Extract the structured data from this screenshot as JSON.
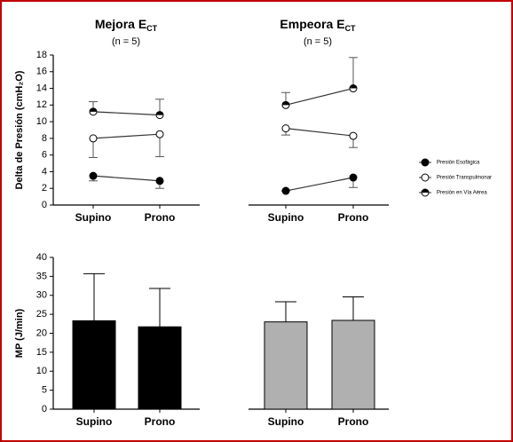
{
  "chart_data": [
    {
      "type": "line",
      "title": "Mejora E",
      "title_subscript": "CT",
      "subtitle": "(n = 5)",
      "ylabel": "Delta de Presión (cmH₂O)",
      "categories": [
        "Supino",
        "Prono"
      ],
      "ylim": [
        0,
        18
      ],
      "yticks": [
        0,
        2,
        4,
        6,
        8,
        10,
        12,
        14,
        16,
        18
      ],
      "series": [
        {
          "marker": "filled",
          "color": "#000000",
          "values": [
            3.5,
            2.9
          ],
          "errors": [
            0.6,
            0.9
          ],
          "error_side": "down"
        },
        {
          "marker": "open",
          "color": "#000000",
          "values": [
            8.0,
            8.5
          ],
          "errors": [
            2.3,
            2.7
          ],
          "error_side": "down"
        },
        {
          "marker": "half",
          "color": "#000000",
          "values": [
            11.2,
            10.8
          ],
          "errors": [
            1.2,
            1.9
          ],
          "error_side": "up"
        }
      ]
    },
    {
      "type": "line",
      "title": "Empeora E",
      "title_subscript": "CT",
      "subtitle": "(n = 5)",
      "categories": [
        "Supino",
        "Prono"
      ],
      "ylim": [
        0,
        18
      ],
      "series": [
        {
          "name": "Presión Esofágica",
          "marker": "filled",
          "color": "#000000",
          "values": [
            1.7,
            3.3
          ],
          "errors": [
            0,
            1.2
          ],
          "error_side": "down"
        },
        {
          "name": "Presión Transpulmonar",
          "marker": "open",
          "color": "#000000",
          "values": [
            9.2,
            8.3
          ],
          "errors": [
            0.8,
            1.4
          ],
          "error_side": "down"
        },
        {
          "name": "Presión en Vía Aérea",
          "marker": "half",
          "color": "#000000",
          "values": [
            12.0,
            14.0
          ],
          "errors": [
            1.5,
            3.7
          ],
          "error_side": "up"
        }
      ]
    },
    {
      "type": "bar",
      "ylabel": "MP (J/min)",
      "categories": [
        "Supino",
        "Prono"
      ],
      "values": [
        23.3,
        21.7
      ],
      "errors": [
        12.4,
        10.1
      ],
      "color": "#000000",
      "ylim": [
        0,
        40
      ],
      "yticks": [
        0,
        5,
        10,
        15,
        20,
        25,
        30,
        35,
        40
      ]
    },
    {
      "type": "bar",
      "categories": [
        "Supino",
        "Prono"
      ],
      "values": [
        23.0,
        23.4
      ],
      "errors": [
        5.3,
        6.2
      ],
      "color": "#b0b0b0",
      "ylim": [
        0,
        40
      ]
    }
  ]
}
